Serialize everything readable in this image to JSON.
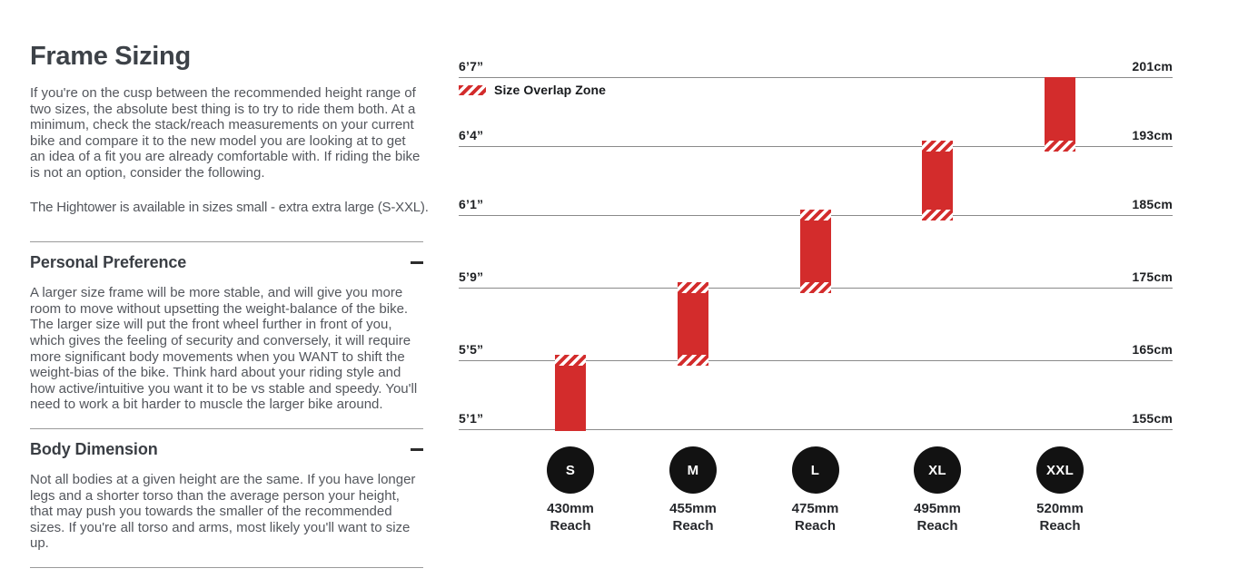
{
  "page": {
    "title": "Frame Sizing",
    "intro_p1": "If you're on the cusp between the recommended height range of two sizes, the absolute best thing is to try to ride them both. At a minimum, check the stack/reach measurements on your current bike and compare it to the new model you are looking at to get an idea of a fit you are already comfortable with. If riding the bike is not an option, consider the following.",
    "intro_p2": "The Hightower is available in sizes small - extra extra large (S-XXL)."
  },
  "sections": [
    {
      "heading": "Personal Preference",
      "collapse_icon": "minus-icon",
      "body": "A larger size frame will be more stable, and will give you more room to move without upsetting the weight-balance of the bike. The larger size will put the front wheel further in front of you, which gives the feeling of security and conversely, it will require more significant body movements when you WANT to shift the weight-bias of the bike. Think hard about your riding style and how active/intuitive you want it to be vs stable and speedy. You'll need to work a bit harder to muscle the larger bike around."
    },
    {
      "heading": "Body Dimension",
      "collapse_icon": "minus-icon",
      "body": "Not all bodies at a given height are the same. If you have longer legs and a shorter torso than the average person your height, that may push you towards the smaller of the recommended sizes. If you're all torso and arms, most likely you'll want to size up."
    }
  ],
  "chart_data": {
    "type": "bar",
    "title": "Frame size vs rider height",
    "legend": {
      "label": "Size Overlap Zone",
      "swatch": "red-hatch"
    },
    "reach_word": "Reach",
    "height_lines": [
      {
        "ft": "6’7”",
        "cm": "201cm",
        "cm_value": 201
      },
      {
        "ft": "6’4”",
        "cm": "193cm",
        "cm_value": 193
      },
      {
        "ft": "6’1”",
        "cm": "185cm",
        "cm_value": 185
      },
      {
        "ft": "5’9”",
        "cm": "175cm",
        "cm_value": 175
      },
      {
        "ft": "5’5”",
        "cm": "165cm",
        "cm_value": 165
      },
      {
        "ft": "5’1”",
        "cm": "155cm",
        "cm_value": 155
      }
    ],
    "sizes": [
      {
        "label": "S",
        "reach": "430mm",
        "range_cm": [
          155,
          165
        ],
        "top_line": 4,
        "bottom_line": 5,
        "hatch_top": true,
        "hatch_bottom": false
      },
      {
        "label": "M",
        "reach": "455mm",
        "range_cm": [
          165,
          175
        ],
        "top_line": 3,
        "bottom_line": 4,
        "hatch_top": true,
        "hatch_bottom": true
      },
      {
        "label": "L",
        "reach": "475mm",
        "range_cm": [
          175,
          185
        ],
        "top_line": 2,
        "bottom_line": 3,
        "hatch_top": true,
        "hatch_bottom": true
      },
      {
        "label": "XL",
        "reach": "495mm",
        "range_cm": [
          185,
          193
        ],
        "top_line": 1,
        "bottom_line": 2,
        "hatch_top": true,
        "hatch_bottom": true
      },
      {
        "label": "XXL",
        "reach": "520mm",
        "range_cm": [
          193,
          201
        ],
        "top_line": 0,
        "bottom_line": 1,
        "hatch_top": false,
        "hatch_bottom": true
      }
    ],
    "colors": {
      "bar_red": "#d32c2c",
      "hatch_white": "#ffffff",
      "line_gray": "#8a8a8a",
      "circle_black": "#121212"
    }
  }
}
